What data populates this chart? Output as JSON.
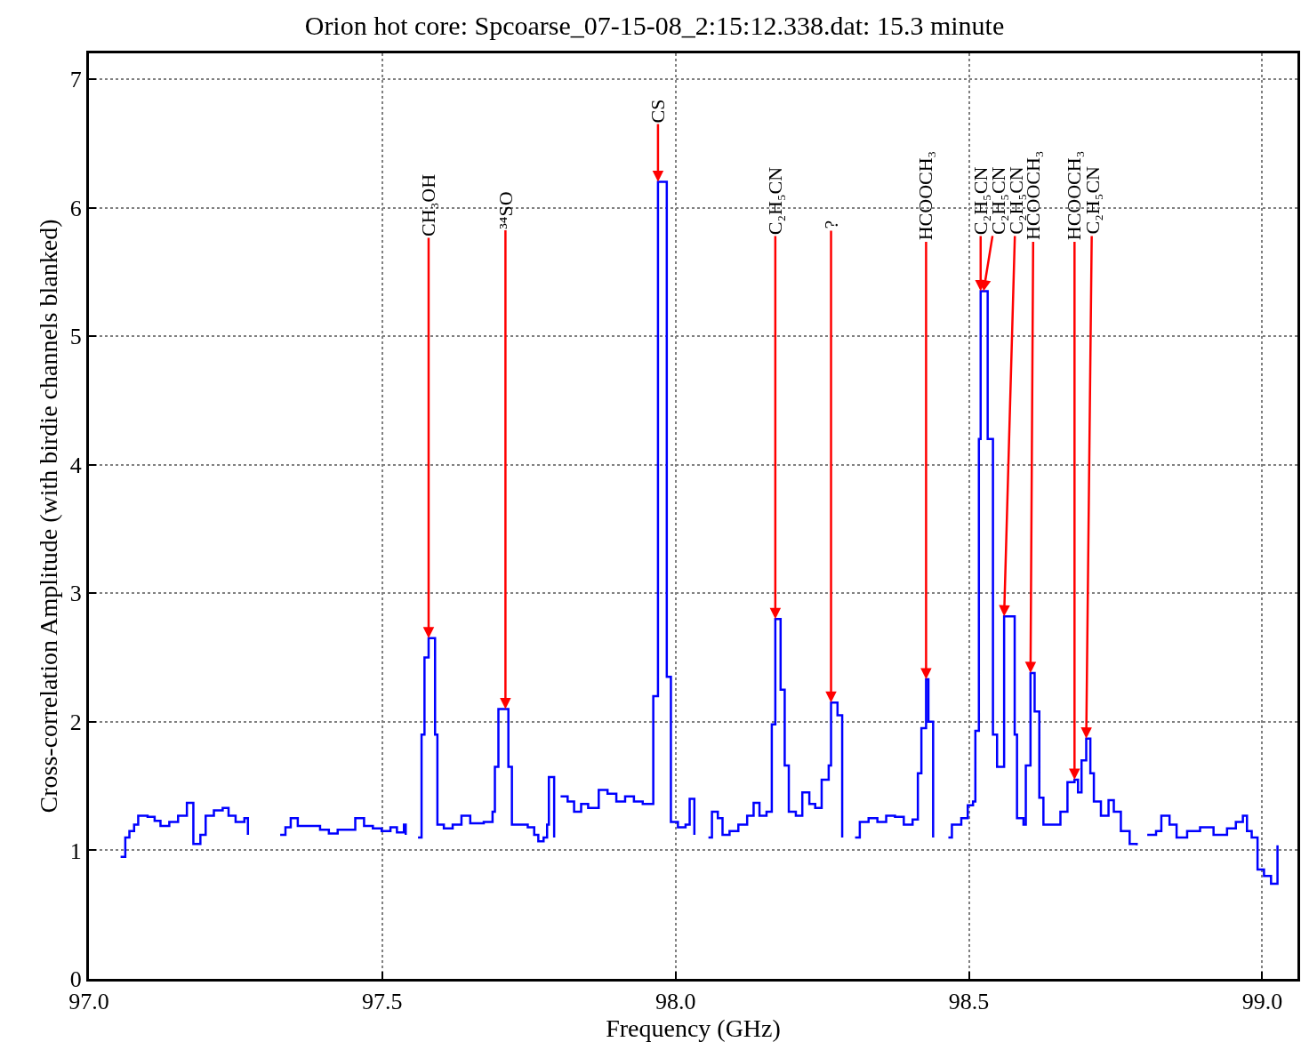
{
  "chart_data": {
    "type": "step",
    "title": "Orion hot core: Spcoarse_07-15-08_2:15:12.338.dat: 15.3 minute",
    "xlabel": "Frequency (GHz)",
    "ylabel": "Cross-correlation Amplitude (with birdie channels blanked)",
    "x": [
      97.054,
      97.062,
      97.069,
      97.077,
      97.084,
      97.1,
      97.112,
      97.122,
      97.137,
      97.152,
      97.167,
      97.178,
      97.19,
      97.199,
      97.213,
      97.228,
      97.238,
      97.25,
      97.265,
      97.271,
      97.29,
      97.326,
      97.335,
      97.344,
      97.356,
      97.379,
      97.394,
      97.409,
      97.424,
      97.439,
      97.454,
      97.469,
      97.484,
      97.499,
      97.514,
      97.525,
      97.537,
      97.54,
      97.55,
      97.561,
      97.567,
      97.572,
      97.579,
      97.59,
      97.594,
      97.605,
      97.62,
      97.635,
      97.65,
      97.673,
      97.688,
      97.692,
      97.698,
      97.71,
      97.715,
      97.721,
      97.733,
      97.748,
      97.759,
      97.766,
      97.775,
      97.781,
      97.784,
      97.79,
      97.793,
      97.797,
      97.804,
      97.816,
      97.827,
      97.839,
      97.851,
      97.869,
      97.884,
      97.899,
      97.914,
      97.929,
      97.944,
      97.956,
      97.962,
      97.97,
      97.977,
      97.985,
      97.992,
      98.004,
      98.017,
      98.024,
      98.032,
      98.04,
      98.056,
      98.062,
      98.072,
      98.08,
      98.092,
      98.107,
      98.122,
      98.133,
      98.143,
      98.155,
      98.164,
      98.17,
      98.179,
      98.186,
      98.193,
      98.205,
      98.216,
      98.228,
      98.238,
      98.249,
      98.261,
      98.265,
      98.276,
      98.284,
      98.29,
      98.306,
      98.314,
      98.329,
      98.344,
      98.359,
      98.374,
      98.389,
      98.404,
      98.413,
      98.419,
      98.427,
      98.431,
      98.439,
      98.45,
      98.465,
      98.471,
      98.487,
      98.498,
      98.507,
      98.511,
      98.517,
      98.52,
      98.525,
      98.532,
      98.541,
      98.548,
      98.56,
      98.57,
      98.578,
      98.582,
      98.593,
      98.597,
      98.605,
      98.612,
      98.62,
      98.627,
      98.646,
      98.656,
      98.668,
      98.68,
      98.686,
      98.692,
      98.7,
      98.707,
      98.713,
      98.725,
      98.738,
      98.747,
      98.759,
      98.774,
      98.786,
      98.79,
      98.804,
      98.819,
      98.828,
      98.842,
      98.854,
      98.872,
      98.894,
      98.917,
      98.94,
      98.955,
      98.967,
      98.974,
      98.982,
      98.992,
      99.003,
      99.015,
      99.026
    ],
    "series": [
      {
        "color": "#0000ff",
        "values": [
          0.95,
          1.1,
          1.15,
          1.2,
          1.27,
          1.26,
          1.23,
          1.19,
          1.22,
          1.27,
          1.37,
          1.05,
          1.12,
          1.27,
          1.31,
          1.33,
          1.27,
          1.22,
          1.25,
          1.12,
          null,
          1.12,
          1.18,
          1.25,
          1.19,
          1.19,
          1.16,
          1.13,
          1.16,
          1.16,
          1.25,
          1.19,
          1.17,
          1.15,
          1.18,
          1.14,
          1.2,
          1.12,
          null,
          1.1,
          1.9,
          2.5,
          2.65,
          1.9,
          1.2,
          1.17,
          1.2,
          1.27,
          1.21,
          1.22,
          1.3,
          1.65,
          2.1,
          2.1,
          1.65,
          1.2,
          1.2,
          1.18,
          1.12,
          1.07,
          1.1,
          1.2,
          1.57,
          1.57,
          1.1,
          null,
          1.42,
          1.38,
          1.3,
          1.36,
          1.33,
          1.47,
          1.44,
          1.38,
          1.42,
          1.38,
          1.36,
          1.36,
          2.2,
          6.2,
          6.2,
          2.35,
          1.22,
          1.18,
          1.2,
          1.4,
          1.12,
          null,
          1.1,
          1.3,
          1.25,
          1.12,
          1.15,
          1.2,
          1.27,
          1.37,
          1.27,
          1.3,
          1.98,
          2.8,
          2.25,
          1.66,
          1.3,
          1.27,
          1.45,
          1.36,
          1.33,
          1.55,
          1.66,
          2.15,
          2.05,
          1.1,
          null,
          1.1,
          1.22,
          1.25,
          1.22,
          1.27,
          1.26,
          1.2,
          1.24,
          1.6,
          1.95,
          2.33,
          2.0,
          1.1,
          null,
          1.1,
          1.2,
          1.25,
          1.35,
          1.38,
          1.93,
          4.2,
          5.35,
          5.35,
          4.2,
          1.9,
          1.65,
          2.82,
          2.82,
          1.9,
          1.25,
          1.2,
          1.66,
          2.38,
          2.08,
          1.41,
          1.2,
          1.2,
          1.3,
          1.53,
          1.55,
          1.45,
          1.7,
          1.87,
          1.6,
          1.38,
          1.27,
          1.39,
          1.3,
          1.15,
          1.05,
          1.04,
          null,
          1.12,
          1.15,
          1.27,
          1.2,
          1.1,
          1.15,
          1.18,
          1.12,
          1.17,
          1.22,
          1.27,
          1.15,
          1.1,
          0.85,
          0.8,
          0.74,
          1.04
        ]
      }
    ],
    "xlim": [
      97.0,
      99.06
    ],
    "ylim": [
      0,
      7.2
    ],
    "xticks": [
      {
        "value": 97.0,
        "label": "97.0"
      },
      {
        "value": 97.5,
        "label": "97.5"
      },
      {
        "value": 98.0,
        "label": "98.0"
      },
      {
        "value": 98.5,
        "label": "98.5"
      },
      {
        "value": 99.0,
        "label": "99.0"
      }
    ],
    "yticks": [
      0,
      1,
      2,
      3,
      4,
      5,
      6,
      7
    ],
    "grid": true,
    "line_style": "solid",
    "annotations": [
      {
        "text": "CH₃OH",
        "x": 97.579,
        "y": 2.65
      },
      {
        "text": "³⁴SO",
        "x": 97.71,
        "y": 2.1
      },
      {
        "text": "CS",
        "x": 97.97,
        "y": 6.2
      },
      {
        "text": "C₂H₅CN",
        "x": 98.17,
        "y": 2.8
      },
      {
        "text": "?",
        "x": 98.265,
        "y": 2.15
      },
      {
        "text": "HCOOCH₃",
        "x": 98.427,
        "y": 2.33
      },
      {
        "text": "C₂H₅CN",
        "x": 98.52,
        "y": 5.35
      },
      {
        "text": "C₂H₅CN",
        "x": 98.525,
        "y": 5.35
      },
      {
        "text": "C₂H₅CN",
        "x": 98.56,
        "y": 2.82
      },
      {
        "text": "HCOOCH₃",
        "x": 98.605,
        "y": 2.38
      },
      {
        "text": "HCOOCH₃",
        "x": 98.68,
        "y": 1.55
      },
      {
        "text": "C₂H₅CN",
        "x": 98.7,
        "y": 1.87
      }
    ]
  }
}
